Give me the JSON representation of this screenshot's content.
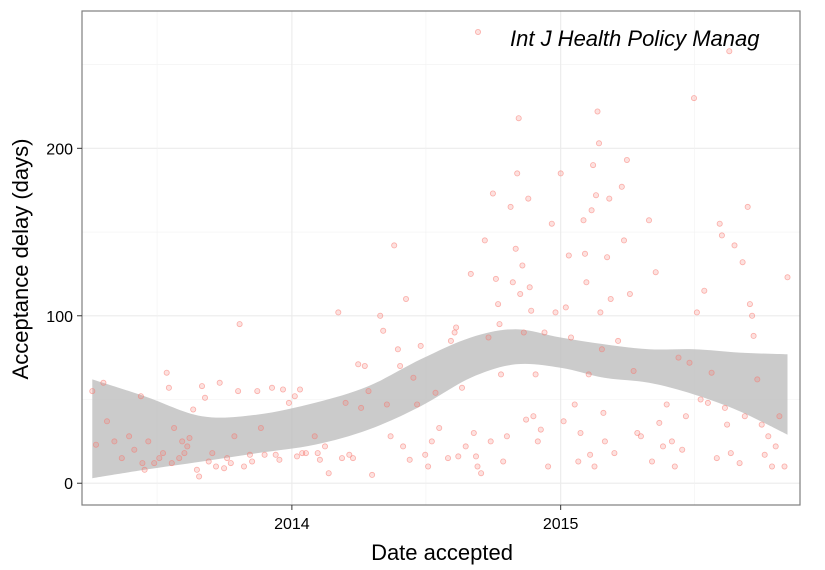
{
  "chart_data": {
    "type": "scatter",
    "title": "",
    "xlabel": "Date accepted",
    "ylabel": "Acceptance delay (days)",
    "x_ticks": [
      "2014",
      "2015"
    ],
    "y_ticks": [
      0,
      100,
      200
    ],
    "xlim": [
      "2013-03-22",
      "2015-11-22"
    ],
    "ylim": [
      -13,
      282
    ],
    "grid": true,
    "legend_position": "top-right",
    "series": [
      {
        "name": "Int J Health Policy Manag",
        "color": "#f8766d",
        "points": [
          [
            "2013-04-05",
            55
          ],
          [
            "2013-04-10",
            23
          ],
          [
            "2013-04-20",
            60
          ],
          [
            "2013-04-25",
            37
          ],
          [
            "2013-05-05",
            25
          ],
          [
            "2013-05-15",
            15
          ],
          [
            "2013-05-25",
            28
          ],
          [
            "2013-06-01",
            20
          ],
          [
            "2013-06-10",
            52
          ],
          [
            "2013-06-12",
            12
          ],
          [
            "2013-06-15",
            8
          ],
          [
            "2013-06-20",
            25
          ],
          [
            "2013-06-28",
            12
          ],
          [
            "2013-07-05",
            15
          ],
          [
            "2013-07-10",
            18
          ],
          [
            "2013-07-15",
            66
          ],
          [
            "2013-07-18",
            57
          ],
          [
            "2013-07-22",
            12
          ],
          [
            "2013-07-25",
            33
          ],
          [
            "2013-08-01",
            15
          ],
          [
            "2013-08-05",
            25
          ],
          [
            "2013-08-08",
            18
          ],
          [
            "2013-08-12",
            22
          ],
          [
            "2013-08-15",
            27
          ],
          [
            "2013-08-20",
            44
          ],
          [
            "2013-08-25",
            8
          ],
          [
            "2013-08-28",
            4
          ],
          [
            "2013-09-01",
            58
          ],
          [
            "2013-09-05",
            51
          ],
          [
            "2013-09-10",
            13
          ],
          [
            "2013-09-15",
            18
          ],
          [
            "2013-09-20",
            10
          ],
          [
            "2013-09-25",
            60
          ],
          [
            "2013-10-01",
            9
          ],
          [
            "2013-10-05",
            15
          ],
          [
            "2013-10-10",
            12
          ],
          [
            "2013-10-15",
            28
          ],
          [
            "2013-10-20",
            55
          ],
          [
            "2013-10-22",
            95
          ],
          [
            "2013-10-28",
            10
          ],
          [
            "2013-11-05",
            17
          ],
          [
            "2013-11-08",
            13
          ],
          [
            "2013-11-15",
            55
          ],
          [
            "2013-11-20",
            33
          ],
          [
            "2013-11-25",
            17
          ],
          [
            "2013-12-05",
            57
          ],
          [
            "2013-12-10",
            17
          ],
          [
            "2013-12-15",
            14
          ],
          [
            "2013-12-20",
            56
          ],
          [
            "2013-12-28",
            48
          ],
          [
            "2014-01-05",
            52
          ],
          [
            "2014-01-08",
            16
          ],
          [
            "2014-01-12",
            56
          ],
          [
            "2014-01-15",
            18
          ],
          [
            "2014-01-20",
            18
          ],
          [
            "2014-02-01",
            28
          ],
          [
            "2014-02-05",
            18
          ],
          [
            "2014-02-08",
            14
          ],
          [
            "2014-02-15",
            22
          ],
          [
            "2014-02-20",
            6
          ],
          [
            "2014-03-05",
            102
          ],
          [
            "2014-03-10",
            15
          ],
          [
            "2014-03-15",
            48
          ],
          [
            "2014-03-20",
            17
          ],
          [
            "2014-03-25",
            15
          ],
          [
            "2014-04-01",
            71
          ],
          [
            "2014-04-05",
            45
          ],
          [
            "2014-04-10",
            70
          ],
          [
            "2014-04-15",
            55
          ],
          [
            "2014-04-20",
            5
          ],
          [
            "2014-05-01",
            100
          ],
          [
            "2014-05-05",
            91
          ],
          [
            "2014-05-10",
            47
          ],
          [
            "2014-05-15",
            28
          ],
          [
            "2014-05-20",
            142
          ],
          [
            "2014-05-25",
            80
          ],
          [
            "2014-05-28",
            70
          ],
          [
            "2014-06-01",
            22
          ],
          [
            "2014-06-05",
            110
          ],
          [
            "2014-06-10",
            14
          ],
          [
            "2014-06-15",
            63
          ],
          [
            "2014-06-20",
            47
          ],
          [
            "2014-06-25",
            82
          ],
          [
            "2014-07-01",
            17
          ],
          [
            "2014-07-05",
            10
          ],
          [
            "2014-07-10",
            25
          ],
          [
            "2014-07-15",
            54
          ],
          [
            "2014-07-20",
            33
          ],
          [
            "2014-08-01",
            15
          ],
          [
            "2014-08-05",
            85
          ],
          [
            "2014-08-10",
            90
          ],
          [
            "2014-08-12",
            93
          ],
          [
            "2014-08-15",
            16
          ],
          [
            "2014-08-20",
            57
          ],
          [
            "2014-08-25",
            22
          ],
          [
            "2014-09-01",
            125
          ],
          [
            "2014-09-05",
            30
          ],
          [
            "2014-09-08",
            16
          ],
          [
            "2014-09-10",
            10
          ],
          [
            "2014-09-15",
            6
          ],
          [
            "2014-09-20",
            145
          ],
          [
            "2014-09-25",
            87
          ],
          [
            "2014-09-28",
            25
          ],
          [
            "2014-10-01",
            173
          ],
          [
            "2014-10-05",
            122
          ],
          [
            "2014-10-08",
            107
          ],
          [
            "2014-10-10",
            95
          ],
          [
            "2014-10-12",
            65
          ],
          [
            "2014-10-15",
            13
          ],
          [
            "2014-10-20",
            28
          ],
          [
            "2014-10-25",
            165
          ],
          [
            "2014-10-28",
            120
          ],
          [
            "2014-11-01",
            140
          ],
          [
            "2014-11-03",
            185
          ],
          [
            "2014-11-05",
            218
          ],
          [
            "2014-11-07",
            113
          ],
          [
            "2014-11-10",
            130
          ],
          [
            "2014-11-12",
            90
          ],
          [
            "2014-11-15",
            38
          ],
          [
            "2014-11-18",
            170
          ],
          [
            "2014-11-20",
            117
          ],
          [
            "2014-11-22",
            103
          ],
          [
            "2014-11-25",
            40
          ],
          [
            "2014-11-28",
            65
          ],
          [
            "2014-12-01",
            25
          ],
          [
            "2014-12-05",
            32
          ],
          [
            "2014-12-10",
            90
          ],
          [
            "2014-12-15",
            10
          ],
          [
            "2014-12-20",
            155
          ],
          [
            "2014-12-25",
            102
          ],
          [
            "2015-01-01",
            185
          ],
          [
            "2015-01-05",
            37
          ],
          [
            "2015-01-08",
            105
          ],
          [
            "2015-01-12",
            136
          ],
          [
            "2015-01-15",
            87
          ],
          [
            "2015-01-20",
            47
          ],
          [
            "2015-01-25",
            13
          ],
          [
            "2015-01-28",
            30
          ],
          [
            "2015-02-01",
            157
          ],
          [
            "2015-02-03",
            137
          ],
          [
            "2015-02-05",
            120
          ],
          [
            "2015-02-08",
            65
          ],
          [
            "2015-02-10",
            17
          ],
          [
            "2015-02-12",
            163
          ],
          [
            "2015-02-14",
            190
          ],
          [
            "2015-02-16",
            10
          ],
          [
            "2015-02-18",
            172
          ],
          [
            "2015-02-20",
            222
          ],
          [
            "2015-02-22",
            203
          ],
          [
            "2015-02-24",
            102
          ],
          [
            "2015-02-26",
            80
          ],
          [
            "2015-02-28",
            42
          ],
          [
            "2015-03-02",
            25
          ],
          [
            "2015-03-05",
            135
          ],
          [
            "2015-03-08",
            170
          ],
          [
            "2015-03-10",
            110
          ],
          [
            "2015-03-15",
            18
          ],
          [
            "2015-03-20",
            85
          ],
          [
            "2015-03-25",
            177
          ],
          [
            "2015-03-28",
            145
          ],
          [
            "2015-04-01",
            193
          ],
          [
            "2015-04-05",
            113
          ],
          [
            "2015-04-10",
            67
          ],
          [
            "2015-04-15",
            30
          ],
          [
            "2015-04-20",
            28
          ],
          [
            "2015-05-01",
            157
          ],
          [
            "2015-05-05",
            13
          ],
          [
            "2015-05-10",
            126
          ],
          [
            "2015-05-15",
            36
          ],
          [
            "2015-05-20",
            22
          ],
          [
            "2015-05-25",
            47
          ],
          [
            "2015-06-01",
            25
          ],
          [
            "2015-06-05",
            10
          ],
          [
            "2015-06-10",
            75
          ],
          [
            "2015-06-15",
            20
          ],
          [
            "2015-06-20",
            40
          ],
          [
            "2015-06-25",
            72
          ],
          [
            "2015-07-01",
            230
          ],
          [
            "2015-07-05",
            102
          ],
          [
            "2015-07-10",
            50
          ],
          [
            "2015-07-15",
            115
          ],
          [
            "2015-07-20",
            48
          ],
          [
            "2015-07-25",
            66
          ],
          [
            "2015-08-01",
            15
          ],
          [
            "2015-08-05",
            155
          ],
          [
            "2015-08-08",
            148
          ],
          [
            "2015-08-12",
            45
          ],
          [
            "2015-08-15",
            35
          ],
          [
            "2015-08-20",
            18
          ],
          [
            "2015-08-25",
            142
          ],
          [
            "2015-09-01",
            12
          ],
          [
            "2015-09-05",
            132
          ],
          [
            "2015-09-08",
            40
          ],
          [
            "2015-09-12",
            165
          ],
          [
            "2015-09-15",
            107
          ],
          [
            "2015-09-18",
            100
          ],
          [
            "2015-09-20",
            88
          ],
          [
            "2015-09-25",
            62
          ],
          [
            "2015-10-01",
            35
          ],
          [
            "2015-10-05",
            17
          ],
          [
            "2015-10-10",
            28
          ],
          [
            "2015-10-15",
            10
          ],
          [
            "2015-10-20",
            22
          ],
          [
            "2015-10-25",
            40
          ],
          [
            "2015-11-01",
            10
          ],
          [
            "2015-11-05",
            123
          ],
          [
            "2015-08-18",
            258
          ]
        ]
      }
    ],
    "smooth": {
      "name": "smoothing band",
      "x": [
        "2013-04-05",
        "2013-06-15",
        "2013-09-01",
        "2013-11-15",
        "2014-02-01",
        "2014-04-15",
        "2014-06-25",
        "2014-09-01",
        "2014-11-01",
        "2015-01-01",
        "2015-03-01",
        "2015-05-01",
        "2015-07-01",
        "2015-09-01",
        "2015-11-05"
      ],
      "upper": [
        62,
        52,
        40,
        41,
        48,
        58,
        74,
        87,
        92,
        87,
        83,
        80,
        80,
        78,
        77
      ],
      "lower": [
        3,
        8,
        13,
        18,
        23,
        32,
        46,
        63,
        71,
        69,
        63,
        60,
        53,
        43,
        29
      ]
    }
  }
}
